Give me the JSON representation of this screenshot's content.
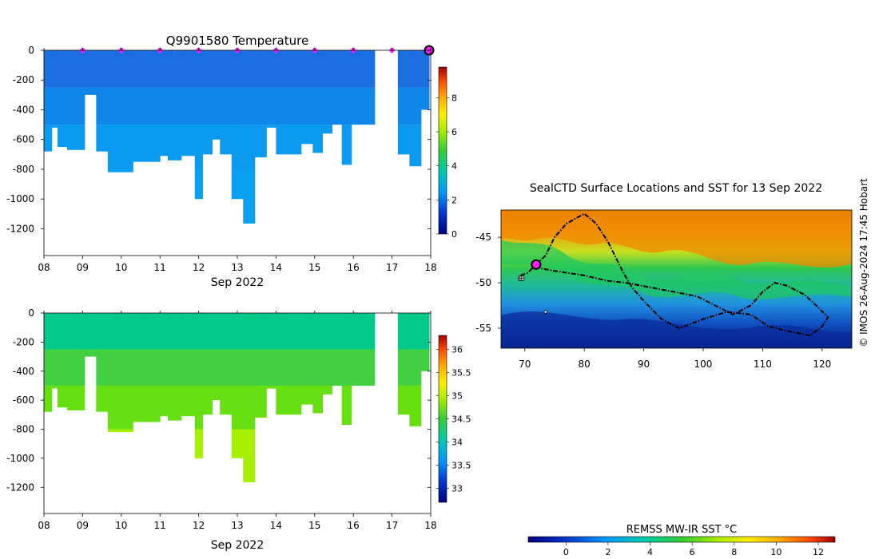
{
  "temperature_panel": {
    "title": "Q9901580  Temperature",
    "xlabel": "Sep 2022",
    "colorbar_ticks": [
      "0",
      "2",
      "4",
      "6",
      "8"
    ]
  },
  "salinity_panel": {
    "xlabel": "Sep 2022",
    "colorbar_ticks": [
      "33",
      "33.5",
      "34",
      "34.5",
      "35",
      "35.5",
      "36"
    ]
  },
  "map_panel": {
    "title": "SealCTD Surface Locations and SST for 13 Sep 2022",
    "credit": "© IMOS 26-Aug-2024 17:45 Hobart",
    "sst_colorbar_label": "REMSS MW-IR SST °C",
    "sst_ticks": [
      "0",
      "2",
      "4",
      "6",
      "8",
      "10",
      "12"
    ]
  },
  "colors": {
    "temp_shallow": "#1a6ee0",
    "temp_deep": "#0a9af0",
    "sal_shallow": "#00c98a",
    "sal_deep": "#a6f000",
    "marker": "#ff1aff"
  },
  "chart_data": [
    {
      "type": "heatmap",
      "name": "temperature-profile",
      "title": "Q9901580  Temperature",
      "xlabel": "Sep 2022",
      "ylabel": "",
      "xlim": [
        8,
        18
      ],
      "ylim": [
        -1380,
        0
      ],
      "x_ticks": [
        8,
        9,
        10,
        11,
        12,
        13,
        14,
        15,
        16,
        17,
        18
      ],
      "x_tick_labels": [
        "08",
        "09",
        "10",
        "11",
        "12",
        "13",
        "14",
        "15",
        "16",
        "17",
        "18"
      ],
      "y_ticks": [
        0,
        -200,
        -400,
        -600,
        -800,
        -1000,
        -1200
      ],
      "y_tick_labels": [
        "0",
        "-200",
        "-400",
        "-600",
        "-800",
        "-1000",
        "-1200"
      ],
      "colorbar_range": [
        0,
        9.8
      ],
      "colorbar_ticks": [
        0,
        2,
        4,
        6,
        8
      ],
      "profile_days": [
        8.0,
        8.2,
        8.35,
        8.6,
        9.05,
        9.35,
        9.65,
        9.95,
        10.3,
        10.65,
        11.0,
        11.2,
        11.55,
        11.9,
        12.1,
        12.35,
        12.55,
        12.85,
        13.15,
        13.45,
        13.75,
        14.0,
        14.3,
        14.65,
        14.95,
        15.2,
        15.45,
        15.7,
        15.95,
        16.2,
        16.55,
        17.15,
        17.45,
        17.75
      ],
      "profile_bottom_depths": [
        -680,
        -520,
        -650,
        -670,
        -300,
        -680,
        -820,
        -820,
        -750,
        -750,
        -710,
        -740,
        -710,
        -1000,
        -700,
        -600,
        -700,
        -1000,
        -1165,
        -720,
        -520,
        -700,
        -700,
        -630,
        -690,
        -560,
        -500,
        -770,
        -500,
        -500,
        null,
        -700,
        -780,
        -400
      ],
      "surface_markers_days": [
        9,
        10,
        11,
        12,
        13,
        14,
        15,
        16,
        17
      ],
      "latest_profile_day": 18
    },
    {
      "type": "heatmap",
      "name": "salinity-profile",
      "title": "",
      "xlabel": "Sep 2022",
      "xlim": [
        8,
        18
      ],
      "ylim": [
        -1380,
        0
      ],
      "x_ticks": [
        8,
        9,
        10,
        11,
        12,
        13,
        14,
        15,
        16,
        17,
        18
      ],
      "x_tick_labels": [
        "08",
        "09",
        "10",
        "11",
        "12",
        "13",
        "14",
        "15",
        "16",
        "17",
        "18"
      ],
      "y_ticks": [
        0,
        -200,
        -400,
        -600,
        -800,
        -1000,
        -1200
      ],
      "y_tick_labels": [
        "0",
        "-200",
        "-400",
        "-600",
        "-800",
        "-1000",
        "-1200"
      ],
      "colorbar_range": [
        32.7,
        36.3
      ],
      "colorbar_ticks": [
        33,
        33.5,
        34,
        34.5,
        35,
        35.5,
        36
      ],
      "profile_days": [
        8.0,
        8.2,
        8.35,
        8.6,
        9.05,
        9.35,
        9.65,
        9.95,
        10.3,
        10.65,
        11.0,
        11.2,
        11.55,
        11.9,
        12.1,
        12.35,
        12.55,
        12.85,
        13.15,
        13.45,
        13.75,
        14.0,
        14.3,
        14.65,
        14.95,
        15.2,
        15.45,
        15.7,
        15.95,
        16.2,
        16.55,
        17.15,
        17.45,
        17.75
      ],
      "profile_bottom_depths": [
        -680,
        -520,
        -650,
        -670,
        -300,
        -680,
        -820,
        -820,
        -750,
        -750,
        -710,
        -740,
        -710,
        -1000,
        -700,
        -600,
        -700,
        -1000,
        -1165,
        -720,
        -520,
        -700,
        -700,
        -630,
        -690,
        -560,
        -500,
        -770,
        -500,
        -500,
        null,
        -700,
        -780,
        -400
      ]
    },
    {
      "type": "scatter",
      "name": "seal-track-map",
      "title": "SealCTD Surface Locations and SST for 13 Sep 2022",
      "xlim": [
        66,
        125
      ],
      "ylim": [
        -57.2,
        -42
      ],
      "x_ticks": [
        70,
        80,
        90,
        100,
        110,
        120
      ],
      "x_tick_labels": [
        "70",
        "80",
        "90",
        "100",
        "110",
        "120"
      ],
      "y_ticks": [
        -45,
        -50,
        -55
      ],
      "y_tick_labels": [
        "-45",
        "-50",
        "-55"
      ],
      "sst_colorbar_label": "REMSS MW-IR SST °C",
      "sst_colorbar_range": [
        -1.8,
        12.8
      ],
      "sst_colorbar_ticks": [
        0,
        2,
        4,
        6,
        8,
        10,
        12
      ],
      "track_points": [
        [
          69.3,
          -49.2
        ],
        [
          70.5,
          -48.9
        ],
        [
          71.9,
          -48.0
        ],
        [
          73.5,
          -47.0
        ],
        [
          75.0,
          -45.0
        ],
        [
          77.0,
          -43.5
        ],
        [
          80.0,
          -42.4
        ],
        [
          82.0,
          -43.5
        ],
        [
          84.0,
          -45.5
        ],
        [
          85.5,
          -47.5
        ],
        [
          86.5,
          -48.8
        ],
        [
          88.0,
          -50.5
        ],
        [
          90.0,
          -52.0
        ],
        [
          93.0,
          -54.0
        ],
        [
          96.0,
          -55.0
        ],
        [
          100.0,
          -54.0
        ],
        [
          104.0,
          -53.2
        ],
        [
          108.0,
          -53.5
        ],
        [
          111.0,
          -54.8
        ],
        [
          114.0,
          -55.3
        ],
        [
          118.0,
          -55.8
        ],
        [
          120.0,
          -54.8
        ],
        [
          121.0,
          -53.8
        ],
        [
          119.0,
          -52.5
        ],
        [
          117.0,
          -51.3
        ],
        [
          114.0,
          -50.3
        ],
        [
          112.0,
          -50.0
        ],
        [
          110.0,
          -51.0
        ],
        [
          108.0,
          -52.5
        ],
        [
          105.0,
          -53.5
        ],
        [
          102.0,
          -52.5
        ],
        [
          99.0,
          -51.5
        ],
        [
          95.0,
          -51.0
        ],
        [
          91.0,
          -50.5
        ],
        [
          87.0,
          -50.0
        ],
        [
          84.0,
          -49.8
        ],
        [
          80.0,
          -49.2
        ],
        [
          75.0,
          -48.7
        ],
        [
          72.5,
          -48.4
        ]
      ],
      "current_location": [
        71.9,
        -48.0
      ],
      "colony_location": [
        69.4,
        -49.4
      ],
      "stray_point": [
        73.5,
        -53.2
      ]
    }
  ]
}
